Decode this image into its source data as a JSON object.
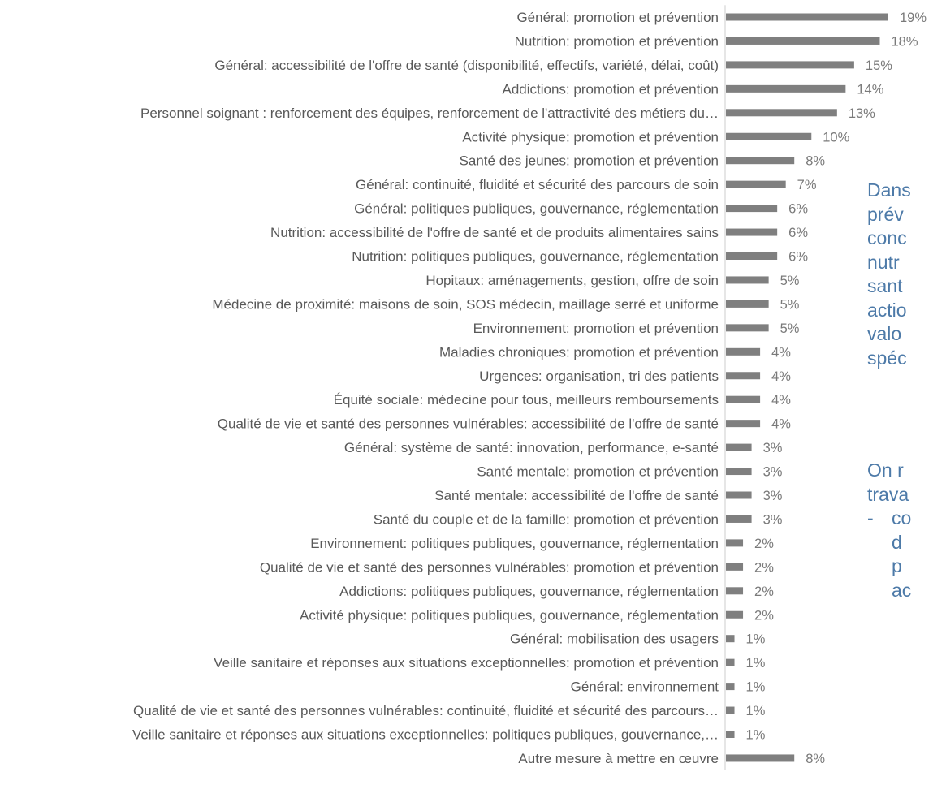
{
  "chart_data": {
    "type": "bar",
    "orientation": "horizontal",
    "title": "",
    "xlabel": "",
    "ylabel": "",
    "xlim": [
      0,
      19
    ],
    "grid": false,
    "legend": "none",
    "bar_color": "#7f7f7f",
    "categories": [
      "Général: promotion et prévention",
      "Nutrition: promotion et prévention",
      "Général: accessibilité de l'offre de santé (disponibilité, effectifs, variété, délai, coût)",
      "Addictions: promotion et prévention",
      "Personnel soignant : renforcement des équipes, renforcement de l'attractivité des métiers du…",
      "Activité physique: promotion et prévention",
      "Santé des jeunes: promotion et prévention",
      "Général: continuité, fluidité et sécurité des parcours de soin",
      "Général: politiques publiques, gouvernance, réglementation",
      "Nutrition: accessibilité de l'offre de santé et de produits alimentaires sains",
      "Nutrition: politiques publiques, gouvernance, réglementation",
      "Hopitaux: aménagements, gestion, offre de soin",
      "Médecine de proximité: maisons de soin, SOS médecin, maillage serré et uniforme",
      "Environnement: promotion et prévention",
      "Maladies chroniques: promotion et prévention",
      "Urgences: organisation, tri des patients",
      "Équité sociale: médecine pour tous, meilleurs remboursements",
      "Qualité de vie et santé des personnes vulnérables: accessibilité de l'offre de santé",
      "Général: système de santé: innovation, performance, e-santé",
      "Santé mentale: promotion et prévention",
      "Santé mentale: accessibilité de l'offre de santé",
      "Santé du couple et de la famille: promotion et prévention",
      "Environnement: politiques publiques, gouvernance, réglementation",
      "Qualité de vie et santé des personnes vulnérables: promotion et prévention",
      "Addictions: politiques publiques, gouvernance, réglementation",
      "Activité physique: politiques publiques, gouvernance, réglementation",
      "Général: mobilisation des usagers",
      "Veille sanitaire et réponses aux situations exceptionnelles: promotion et prévention",
      "Général: environnement",
      "Qualité de vie et santé des personnes vulnérables: continuité, fluidité et sécurité des parcours…",
      "Veille sanitaire et réponses aux situations exceptionnelles: politiques publiques, gouvernance,…",
      "Autre mesure à mettre en œuvre"
    ],
    "values": [
      19,
      18,
      15,
      14,
      13,
      10,
      8,
      7,
      6,
      6,
      6,
      5,
      5,
      5,
      4,
      4,
      4,
      4,
      3,
      3,
      3,
      3,
      2,
      2,
      2,
      2,
      1,
      1,
      1,
      1,
      1,
      8
    ],
    "value_labels": [
      "19%",
      "18%",
      "15%",
      "14%",
      "13%",
      "10%",
      "8%",
      "7%",
      "6%",
      "6%",
      "6%",
      "5%",
      "5%",
      "5%",
      "4%",
      "4%",
      "4%",
      "4%",
      "3%",
      "3%",
      "3%",
      "3%",
      "2%",
      "2%",
      "2%",
      "2%",
      "1%",
      "1%",
      "1%",
      "1%",
      "1%",
      "8%"
    ]
  },
  "side_text": {
    "paragraph1": [
      "Dans",
      "prév",
      "conc",
      "nutr",
      "sant",
      "actio",
      "valo",
      "spéc"
    ],
    "paragraph2": [
      "On r",
      "trava"
    ],
    "dash": "-",
    "bullet_lines": [
      "co",
      "d",
      "p",
      "ac"
    ]
  }
}
